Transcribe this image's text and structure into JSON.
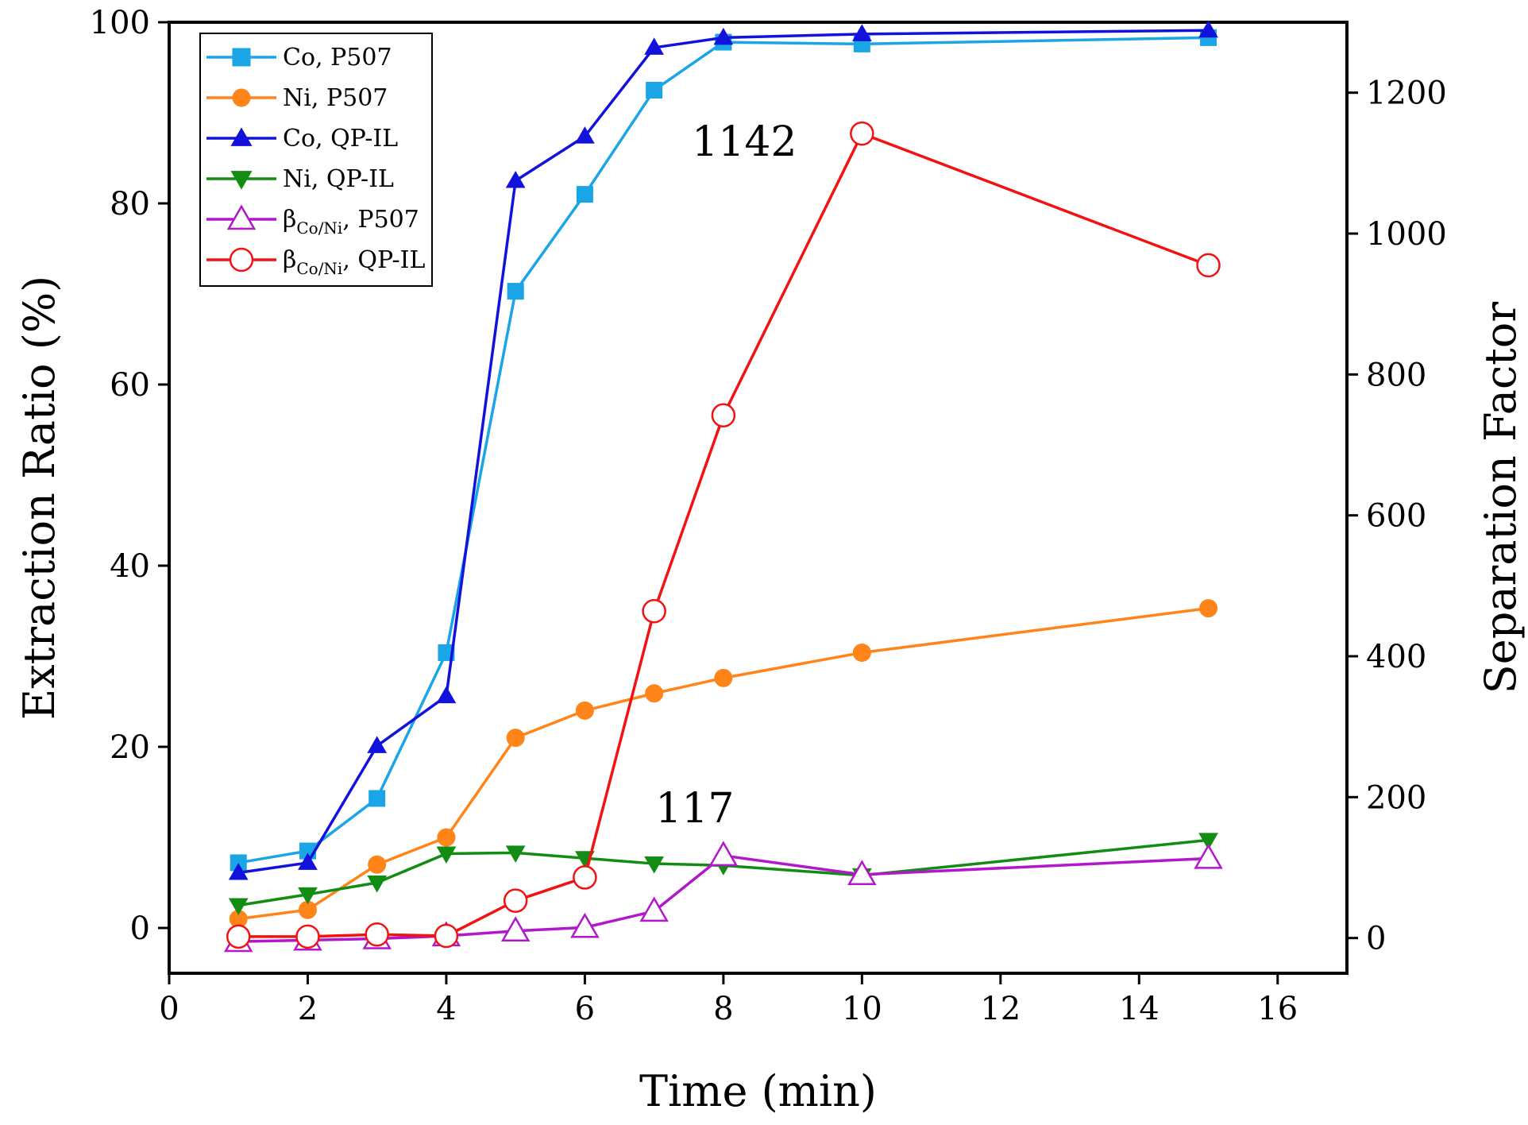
{
  "chart_data": {
    "type": "line",
    "xlabel": "Time (min)",
    "ylabel": "Extraction Ratio (%)",
    "y2label": "Separation Factor",
    "xlim": [
      0,
      17
    ],
    "ylim": [
      -5,
      100
    ],
    "y2lim": [
      -50,
      1300
    ],
    "x_ticks": [
      0,
      2,
      4,
      6,
      8,
      10,
      12,
      14,
      16
    ],
    "y_ticks": [
      0,
      20,
      40,
      60,
      80,
      100
    ],
    "y2_ticks": [
      0,
      200,
      400,
      600,
      800,
      1000,
      1200
    ],
    "x": [
      1,
      2,
      3,
      4,
      5,
      6,
      7,
      8,
      10,
      15
    ],
    "legend_position": "top-left",
    "series": [
      {
        "name": "Co, P507",
        "axis": "left",
        "color": "#1aa5e6",
        "marker": "square",
        "filled": true,
        "values": [
          7.2,
          8.5,
          14.3,
          30.4,
          70.3,
          81.0,
          92.5,
          97.8,
          97.6,
          98.3
        ]
      },
      {
        "name": "Ni, P507",
        "axis": "left",
        "color": "#ff8419",
        "marker": "circle",
        "filled": true,
        "values": [
          1.0,
          2.0,
          7.0,
          10.0,
          21.0,
          24.0,
          25.9,
          27.6,
          30.4,
          35.3
        ]
      },
      {
        "name": "Co, QP-IL",
        "axis": "left",
        "color": "#1212dc",
        "marker": "triangle-up",
        "filled": true,
        "values": [
          6.1,
          7.2,
          20.1,
          25.6,
          82.5,
          87.4,
          97.2,
          98.3,
          98.7,
          99.1
        ]
      },
      {
        "name": "Ni,  QP-IL",
        "axis": "left",
        "color": "#128c12",
        "marker": "triangle-down",
        "filled": true,
        "values": [
          2.5,
          3.7,
          5.0,
          8.2,
          8.3,
          7.7,
          7.1,
          6.9,
          5.8,
          9.7
        ]
      },
      {
        "name": "β",
        "subscript": "Co/Ni",
        "suffix": ", P507",
        "axis": "right",
        "color": "#b317cc",
        "marker": "triangle-up",
        "filled": false,
        "values": [
          -5,
          -3,
          -1,
          3,
          10,
          15,
          38,
          117,
          90,
          113
        ]
      },
      {
        "name": "β",
        "subscript": "Co/Ni",
        "suffix": ", QP-IL",
        "axis": "right",
        "color": "#f21212",
        "marker": "circle",
        "filled": false,
        "values": [
          2,
          2,
          5,
          3,
          53,
          86,
          464,
          742,
          1142,
          955
        ]
      }
    ],
    "annotations": [
      {
        "text": "1142",
        "series": 5,
        "point": 8
      },
      {
        "text": "117",
        "series": 4,
        "point": 7
      }
    ]
  }
}
